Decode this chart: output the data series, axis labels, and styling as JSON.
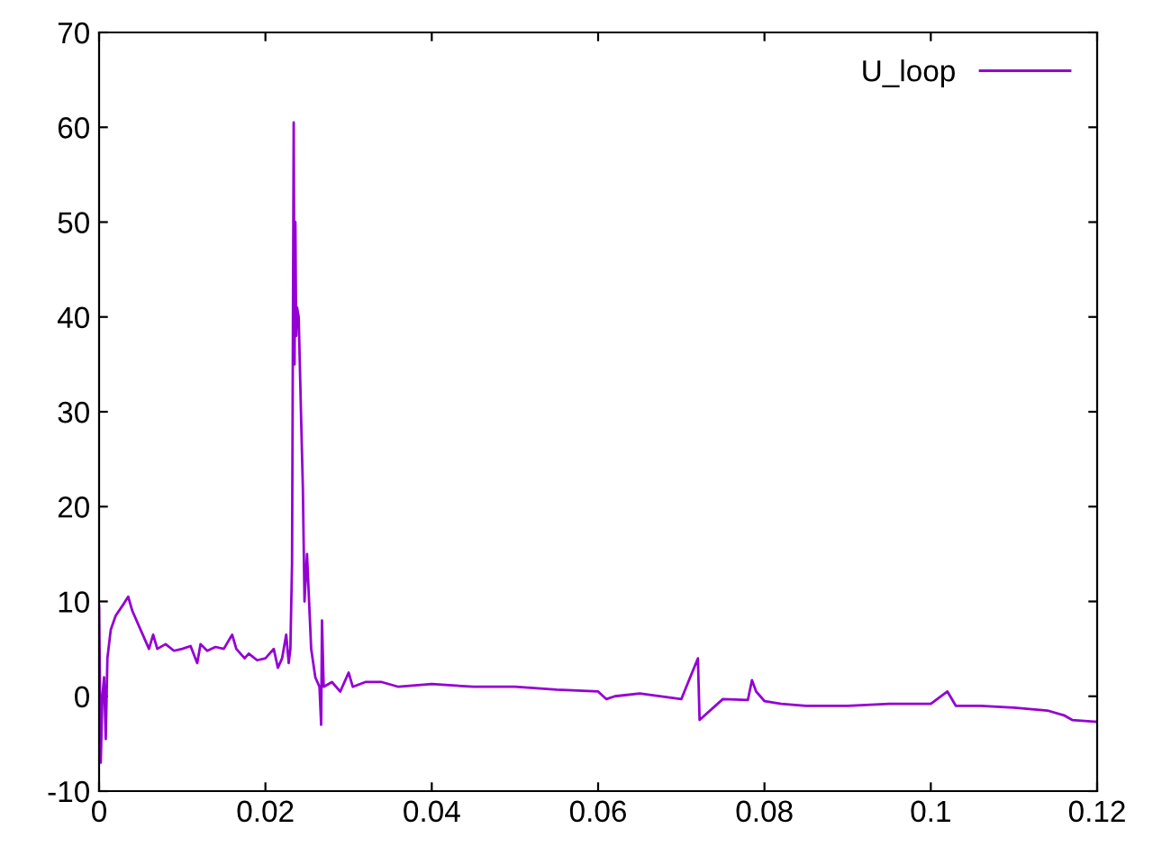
{
  "chart_data": {
    "type": "line",
    "x": [
      0,
      0.0002,
      0.0004,
      0.0006,
      0.0008,
      0.001,
      0.0014,
      0.002,
      0.003,
      0.0035,
      0.004,
      0.005,
      0.006,
      0.0065,
      0.007,
      0.008,
      0.009,
      0.01,
      0.011,
      0.0118,
      0.0122,
      0.013,
      0.014,
      0.015,
      0.016,
      0.0165,
      0.017,
      0.0175,
      0.018,
      0.019,
      0.02,
      0.021,
      0.0215,
      0.022,
      0.0225,
      0.0228,
      0.023,
      0.0232,
      0.0234,
      0.0235,
      0.0236,
      0.0237,
      0.0238,
      0.024,
      0.0243,
      0.0245,
      0.0247,
      0.025,
      0.0255,
      0.026,
      0.0265,
      0.0267,
      0.0268,
      0.027,
      0.028,
      0.029,
      0.03,
      0.0305,
      0.032,
      0.034,
      0.036,
      0.04,
      0.045,
      0.05,
      0.055,
      0.06,
      0.061,
      0.062,
      0.065,
      0.07,
      0.072,
      0.0722,
      0.075,
      0.078,
      0.0785,
      0.079,
      0.08,
      0.082,
      0.085,
      0.09,
      0.095,
      0.1,
      0.102,
      0.103,
      0.106,
      0.11,
      0.114,
      0.116,
      0.117,
      0.12
    ],
    "series": [
      {
        "name": "U_loop",
        "color": "#9400d3",
        "values": [
          9.5,
          -7,
          0,
          2,
          -4.5,
          4,
          7,
          8.5,
          9.8,
          10.5,
          9,
          7,
          5,
          6.5,
          5,
          5.5,
          4.8,
          5,
          5.3,
          3.5,
          5.5,
          4.8,
          5.2,
          5,
          6.5,
          5,
          4.5,
          4,
          4.5,
          3.8,
          4,
          5,
          3,
          4,
          6.5,
          3.5,
          5,
          14,
          60.5,
          35,
          50,
          38,
          41,
          40,
          29,
          22,
          10,
          15,
          5,
          2,
          1,
          -3,
          8,
          1,
          1.5,
          0.5,
          2.5,
          1,
          1.5,
          1.5,
          1,
          1.3,
          1,
          1,
          0.7,
          0.5,
          -0.3,
          0,
          0.3,
          -0.3,
          4,
          -2.5,
          -0.3,
          -0.4,
          1.7,
          0.5,
          -0.5,
          -0.8,
          -1,
          -1,
          -0.8,
          -0.8,
          0.5,
          -1,
          -1,
          -1.2,
          -1.5,
          -2,
          -2.5,
          -2.7
        ]
      }
    ],
    "xlim": [
      0,
      0.12
    ],
    "ylim": [
      -10,
      70
    ],
    "xticks": [
      0,
      0.02,
      0.04,
      0.06,
      0.08,
      0.1,
      0.12
    ],
    "yticks": [
      -10,
      0,
      10,
      20,
      30,
      40,
      50,
      60,
      70
    ],
    "legend": "top right",
    "grid": false
  }
}
